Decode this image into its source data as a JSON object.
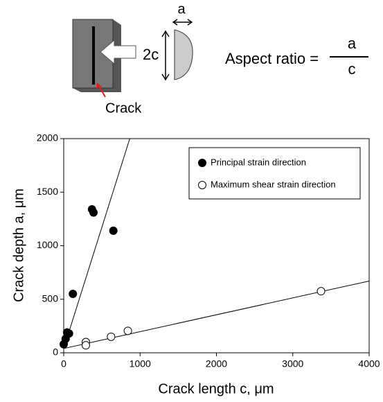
{
  "diagram": {
    "width_label": "a",
    "length_label": "2c",
    "crack_label": "Crack",
    "ratio_label": "Aspect ratio =",
    "ratio_numerator": "a",
    "ratio_denominator": "c"
  },
  "chart_data": {
    "type": "scatter",
    "xlabel": "Crack length  c,  μm",
    "ylabel": "Crack depth  a,  μm",
    "xlim": [
      0,
      4000
    ],
    "ylim": [
      0,
      2000
    ],
    "xticks": [
      0,
      1000,
      2000,
      3000,
      4000
    ],
    "yticks": [
      0,
      500,
      1000,
      1500,
      2000
    ],
    "legend": "upper right",
    "series": [
      {
        "name": "Principal strain direction",
        "color": "#000000",
        "x": [
          0,
          25,
          45,
          70,
          120,
          370,
          390,
          650
        ],
        "values": [
          80,
          130,
          190,
          180,
          550,
          1340,
          1310,
          1140
        ]
      },
      {
        "name": "Maximum shear strain direction",
        "color": "#ffffff",
        "x": [
          290,
          290,
          620,
          840,
          3370
        ],
        "values": [
          100,
          70,
          150,
          205,
          575
        ]
      }
    ],
    "fit_lines": [
      {
        "x": [
          0,
          865
        ],
        "values": [
          40,
          2000
        ]
      },
      {
        "x": [
          0,
          4000
        ],
        "values": [
          40,
          670
        ]
      }
    ]
  }
}
